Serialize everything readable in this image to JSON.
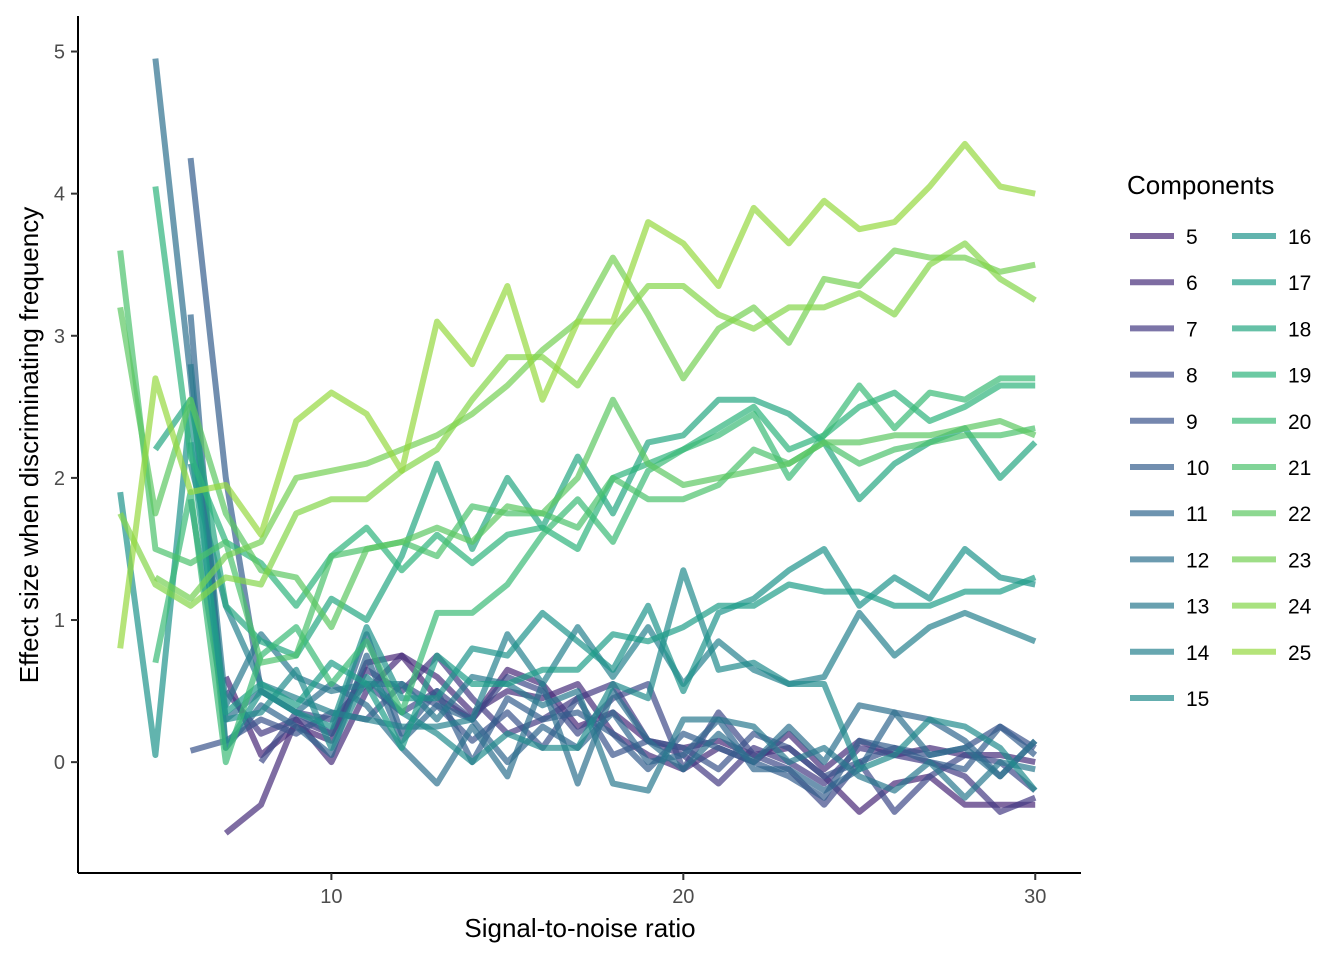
{
  "chart_data": {
    "type": "line",
    "xlabel": "Signal-to-noise ratio",
    "ylabel": "Effect size when discriminating frequency",
    "xlim": [
      2.8,
      31.3
    ],
    "ylim": [
      -0.78,
      5.25
    ],
    "x_ticks": [
      10,
      20,
      30
    ],
    "y_ticks": [
      0,
      1,
      2,
      3,
      4,
      5
    ],
    "grid": false,
    "legend": {
      "title": "Components",
      "placement": "right",
      "columns": 2
    },
    "colormap": "viridis",
    "series": [
      {
        "name": "5",
        "color": "#482878",
        "x": [
          7,
          8,
          9,
          10,
          11,
          12,
          13,
          14,
          15,
          16,
          17,
          18,
          19,
          20,
          21,
          22,
          23,
          24,
          25,
          26,
          27,
          28,
          29,
          30
        ],
        "values": [
          0.6,
          0.05,
          0.25,
          0.15,
          0.7,
          0.75,
          0.45,
          0.3,
          0.65,
          0.55,
          0.25,
          0.35,
          0.15,
          0.1,
          0.15,
          0.05,
          0.1,
          -0.1,
          -0.35,
          -0.15,
          -0.1,
          -0.3,
          -0.3,
          -0.3
        ]
      },
      {
        "name": "6",
        "color": "#472D7B",
        "x": [
          7,
          8,
          9,
          10,
          11,
          12,
          13,
          14,
          15,
          16,
          17,
          18,
          19,
          20,
          21,
          22,
          23,
          24,
          25,
          26,
          27,
          28,
          29,
          30
        ],
        "values": [
          -0.5,
          -0.3,
          0.3,
          0.0,
          0.5,
          0.75,
          0.6,
          0.35,
          0.5,
          0.45,
          0.55,
          0.2,
          0.05,
          -0.05,
          0.1,
          0.0,
          0.2,
          -0.05,
          0.15,
          0.05,
          0.1,
          0.05,
          0.05,
          0.0
        ]
      },
      {
        "name": "7",
        "color": "#443A83",
        "x": [
          7,
          8,
          9,
          10,
          11,
          12,
          13,
          14,
          15,
          16,
          17,
          18,
          19,
          20,
          21,
          22,
          23,
          24,
          25,
          26,
          27,
          28,
          29,
          30
        ],
        "values": [
          0.5,
          0.2,
          0.3,
          0.2,
          0.65,
          0.5,
          0.75,
          0.45,
          0.2,
          0.3,
          0.45,
          0.55,
          0.15,
          0.05,
          -0.15,
          0.1,
          0.0,
          -0.15,
          0.1,
          0.05,
          0.0,
          -0.1,
          -0.35,
          -0.25
        ]
      },
      {
        "name": "8",
        "color": "#3E4A89",
        "x": [
          8,
          9,
          10,
          11,
          12,
          13,
          14,
          15,
          16,
          17,
          18,
          19,
          20,
          21,
          22,
          23,
          24,
          25,
          26,
          27,
          28,
          29,
          30
        ],
        "values": [
          0.0,
          0.35,
          0.3,
          0.55,
          0.35,
          0.5,
          0.3,
          0.6,
          0.5,
          0.2,
          0.45,
          0.55,
          -0.05,
          0.35,
          0.05,
          -0.05,
          -0.3,
          0.0,
          -0.35,
          -0.1,
          0.05,
          0.0,
          -0.2
        ]
      },
      {
        "name": "9",
        "color": "#3A548C",
        "x": [
          6,
          7,
          8,
          9,
          10,
          11,
          12,
          13,
          14,
          15,
          16,
          17,
          18,
          19,
          20,
          21,
          22,
          23,
          24,
          25,
          26,
          27,
          28,
          29,
          30
        ],
        "values": [
          0.08,
          0.15,
          0.3,
          0.2,
          0.35,
          0.3,
          0.55,
          0.4,
          0.15,
          0.35,
          0.1,
          0.45,
          0.05,
          0.15,
          0.1,
          -0.05,
          0.2,
          0.1,
          -0.1,
          0.0,
          0.1,
          0.05,
          0.1,
          0.25,
          0.1
        ]
      },
      {
        "name": "10",
        "color": "#355E8D",
        "x": [
          6,
          7,
          8,
          9,
          10,
          11,
          12,
          13,
          14,
          15,
          16,
          17,
          18,
          19,
          20,
          21,
          22,
          23,
          24,
          25,
          26,
          27,
          28,
          29,
          30
        ],
        "values": [
          4.25,
          2.0,
          0.5,
          0.35,
          0.2,
          0.9,
          0.2,
          0.5,
          0.0,
          0.45,
          0.3,
          0.35,
          0.2,
          -0.05,
          0.2,
          0.1,
          0.0,
          -0.1,
          -0.25,
          0.15,
          0.1,
          0.0,
          -0.05,
          0.25,
          0.05
        ]
      },
      {
        "name": "11",
        "color": "#31668E",
        "x": [
          6,
          7,
          8,
          9,
          10,
          11,
          12,
          13,
          14,
          15,
          16,
          17,
          18,
          19,
          20,
          21,
          22,
          23,
          24,
          25,
          26,
          27,
          28,
          29,
          30
        ],
        "values": [
          3.15,
          0.1,
          0.4,
          0.25,
          0.05,
          0.75,
          0.15,
          0.4,
          0.3,
          0.0,
          0.25,
          0.1,
          0.35,
          0.0,
          0.05,
          0.3,
          -0.05,
          -0.05,
          -0.2,
          -0.05,
          0.35,
          0.3,
          0.15,
          -0.1,
          0.15
        ]
      },
      {
        "name": "12",
        "color": "#2D708E",
        "x": [
          5,
          6,
          7,
          8,
          9,
          10,
          11,
          12,
          13,
          14,
          15,
          16,
          17,
          18,
          19,
          20,
          21,
          22,
          23,
          24,
          25,
          26,
          27,
          28,
          29,
          30
        ],
        "values": [
          4.95,
          2.7,
          0.3,
          0.5,
          0.35,
          0.55,
          0.4,
          0.1,
          -0.15,
          0.25,
          -0.1,
          0.55,
          -0.15,
          0.5,
          0.15,
          -0.05,
          0.2,
          0.0,
          0.25,
          0.0,
          0.4,
          0.35,
          0.05,
          0.1,
          -0.1,
          0.15
        ]
      },
      {
        "name": "13",
        "color": "#29798E",
        "x": [
          6,
          7,
          8,
          9,
          10,
          11,
          12,
          13,
          14,
          15,
          16,
          17,
          18,
          19,
          20,
          21,
          22,
          23,
          24,
          25,
          26,
          27,
          28,
          29,
          30
        ],
        "values": [
          2.8,
          0.4,
          0.9,
          0.6,
          0.5,
          0.55,
          0.55,
          0.3,
          0.6,
          0.55,
          0.4,
          0.5,
          -0.15,
          -0.2,
          0.3,
          0.3,
          0.25,
          0.0,
          0.1,
          -0.1,
          -0.2,
          0.0,
          -0.25,
          0.0,
          -0.05
        ]
      },
      {
        "name": "14",
        "color": "#26828E",
        "x": [
          6,
          7,
          8,
          9,
          10,
          11,
          12,
          13,
          14,
          15,
          16,
          17,
          18,
          19,
          20,
          21,
          22,
          23,
          24,
          25,
          26,
          27,
          28,
          29,
          30
        ],
        "values": [
          2.1,
          1.1,
          0.55,
          0.45,
          0.35,
          0.3,
          0.25,
          0.25,
          0.3,
          0.9,
          0.55,
          0.95,
          0.6,
          0.95,
          0.55,
          0.85,
          0.65,
          0.55,
          0.6,
          1.05,
          0.75,
          0.95,
          1.05,
          0.95,
          0.85
        ]
      },
      {
        "name": "15",
        "color": "#228B8D",
        "x": [
          6,
          7,
          8,
          9,
          10,
          11,
          12,
          13,
          14,
          15,
          16,
          17,
          18,
          19,
          20,
          21,
          22,
          23,
          24,
          25,
          26,
          27,
          28,
          29,
          30
        ],
        "values": [
          1.85,
          0.3,
          0.35,
          0.65,
          0.1,
          0.6,
          0.35,
          0.2,
          0.0,
          0.2,
          0.1,
          0.1,
          0.55,
          0.45,
          1.35,
          0.65,
          0.7,
          0.55,
          0.55,
          -0.05,
          0.05,
          0.3,
          0.25,
          0.1,
          -0.2
        ]
      },
      {
        "name": "16",
        "color": "#1F948C",
        "x": [
          4,
          5,
          6,
          7,
          8,
          9,
          10,
          11,
          12,
          13,
          14,
          15,
          16,
          17,
          18,
          19,
          20,
          21,
          22,
          23,
          24,
          25,
          26,
          27,
          28,
          29,
          30
        ],
        "values": [
          1.9,
          0.05,
          2.5,
          0.1,
          0.5,
          0.35,
          0.25,
          0.95,
          0.45,
          0.45,
          0.8,
          0.75,
          1.05,
          0.85,
          0.65,
          1.1,
          0.5,
          1.05,
          1.15,
          1.35,
          1.5,
          1.1,
          1.3,
          1.15,
          1.5,
          1.3,
          1.25
        ]
      },
      {
        "name": "17",
        "color": "#1F9E89",
        "x": [
          6,
          7,
          8,
          9,
          10,
          11,
          12,
          13,
          14,
          15,
          16,
          17,
          18,
          19,
          20,
          21,
          22,
          23,
          24,
          25,
          26,
          27,
          28,
          29,
          30
        ],
        "values": [
          2.25,
          0.35,
          0.55,
          0.4,
          0.7,
          0.55,
          0.1,
          0.75,
          0.55,
          0.55,
          0.65,
          0.65,
          0.9,
          0.85,
          0.95,
          1.1,
          1.1,
          1.25,
          1.2,
          1.2,
          1.1,
          1.1,
          1.2,
          1.2,
          1.3
        ]
      },
      {
        "name": "18",
        "color": "#25A782",
        "x": [
          5,
          6,
          7,
          8,
          9,
          10,
          11,
          12,
          13,
          14,
          15,
          16,
          17,
          18,
          19,
          20,
          21,
          22,
          23,
          24,
          25,
          26,
          27,
          28,
          29,
          30
        ],
        "values": [
          2.2,
          2.55,
          1.1,
          0.85,
          0.75,
          1.15,
          1.0,
          1.45,
          2.1,
          1.5,
          2.0,
          1.65,
          2.15,
          1.75,
          2.25,
          2.3,
          2.55,
          2.55,
          2.45,
          2.25,
          1.85,
          2.1,
          2.25,
          2.35,
          2.0,
          2.25
        ]
      },
      {
        "name": "19",
        "color": "#2EB37C",
        "x": [
          5,
          6,
          7,
          8,
          9,
          10,
          11,
          12,
          13,
          14,
          15,
          16,
          17,
          18,
          19,
          20,
          21,
          22,
          23,
          24,
          25,
          26,
          27,
          28,
          29,
          30
        ],
        "values": [
          4.05,
          2.15,
          1.55,
          1.4,
          1.1,
          1.45,
          1.65,
          1.35,
          1.6,
          1.4,
          1.6,
          1.65,
          1.5,
          2.0,
          2.1,
          2.2,
          2.35,
          2.5,
          2.2,
          2.3,
          2.5,
          2.6,
          2.4,
          2.5,
          2.65,
          2.65
        ]
      },
      {
        "name": "20",
        "color": "#3ABA76",
        "x": [
          5,
          6,
          7,
          8,
          9,
          10,
          11,
          12,
          13,
          14,
          15,
          16,
          17,
          18,
          19,
          20,
          21,
          22,
          23,
          24,
          25,
          26,
          27,
          28,
          29,
          30
        ],
        "values": [
          0.7,
          1.9,
          0.0,
          0.75,
          0.95,
          0.55,
          0.85,
          0.35,
          1.05,
          1.05,
          1.25,
          1.6,
          1.85,
          1.55,
          2.05,
          2.2,
          2.3,
          2.45,
          2.0,
          2.3,
          2.65,
          2.35,
          2.6,
          2.55,
          2.7,
          2.7
        ]
      },
      {
        "name": "21",
        "color": "#4CC26C",
        "x": [
          4,
          5,
          6,
          7,
          8,
          9,
          10,
          11,
          12,
          13,
          14,
          15,
          16,
          17,
          18,
          19,
          20,
          21,
          22,
          23,
          24,
          25,
          26,
          27,
          28,
          29,
          30
        ],
        "values": [
          3.6,
          1.5,
          1.4,
          1.55,
          0.7,
          0.75,
          1.45,
          1.5,
          1.55,
          1.45,
          1.8,
          1.75,
          1.75,
          1.65,
          2.0,
          1.85,
          1.85,
          1.95,
          2.2,
          2.1,
          2.25,
          2.1,
          2.2,
          2.25,
          2.3,
          2.3,
          2.35
        ]
      },
      {
        "name": "22",
        "color": "#5DC863",
        "x": [
          4,
          5,
          6,
          7,
          8,
          9,
          10,
          11,
          12,
          13,
          14,
          15,
          16,
          17,
          18,
          19,
          20,
          21,
          22,
          23,
          24,
          25,
          26,
          27,
          28,
          29,
          30
        ],
        "values": [
          3.2,
          1.75,
          2.55,
          1.75,
          1.35,
          1.3,
          0.95,
          1.5,
          1.55,
          1.65,
          1.55,
          1.8,
          1.75,
          2.0,
          2.55,
          2.1,
          1.95,
          2.0,
          2.05,
          2.1,
          2.25,
          2.25,
          2.3,
          2.3,
          2.35,
          2.4,
          2.3
        ]
      },
      {
        "name": "23",
        "color": "#75D054",
        "x": [
          5,
          6,
          7,
          8,
          9,
          10,
          11,
          12,
          13,
          14,
          15,
          16,
          17,
          18,
          19,
          20,
          21,
          22,
          23,
          24,
          25,
          26,
          27,
          28,
          29,
          30
        ],
        "values": [
          1.3,
          1.15,
          1.45,
          1.55,
          2.0,
          2.05,
          2.1,
          2.2,
          2.3,
          2.45,
          2.65,
          2.9,
          3.1,
          3.55,
          3.15,
          2.7,
          3.05,
          3.2,
          2.95,
          3.4,
          3.35,
          3.6,
          3.55,
          3.55,
          3.45,
          3.5
        ]
      },
      {
        "name": "24",
        "color": "#85D54A",
        "x": [
          4,
          5,
          6,
          7,
          8,
          9,
          10,
          11,
          12,
          13,
          14,
          15,
          16,
          17,
          18,
          19,
          20,
          21,
          22,
          23,
          24,
          25,
          26,
          27,
          28,
          29,
          30
        ],
        "values": [
          1.75,
          1.25,
          1.1,
          1.3,
          1.25,
          1.75,
          1.85,
          1.85,
          2.05,
          2.2,
          2.55,
          2.85,
          2.85,
          2.65,
          3.05,
          3.35,
          3.35,
          3.15,
          3.05,
          3.2,
          3.2,
          3.3,
          3.15,
          3.5,
          3.65,
          3.4,
          3.25
        ]
      },
      {
        "name": "25",
        "color": "#95D840",
        "x": [
          4,
          5,
          6,
          7,
          8,
          9,
          10,
          11,
          12,
          13,
          14,
          15,
          16,
          17,
          18,
          19,
          20,
          21,
          22,
          23,
          24,
          25,
          26,
          27,
          28,
          29,
          30
        ],
        "values": [
          0.8,
          2.7,
          1.9,
          1.95,
          1.6,
          2.4,
          2.6,
          2.45,
          2.05,
          3.1,
          2.8,
          3.35,
          2.55,
          3.1,
          3.1,
          3.8,
          3.65,
          3.35,
          3.9,
          3.65,
          3.95,
          3.75,
          3.8,
          4.05,
          4.35,
          4.05,
          4.0
        ]
      }
    ]
  }
}
